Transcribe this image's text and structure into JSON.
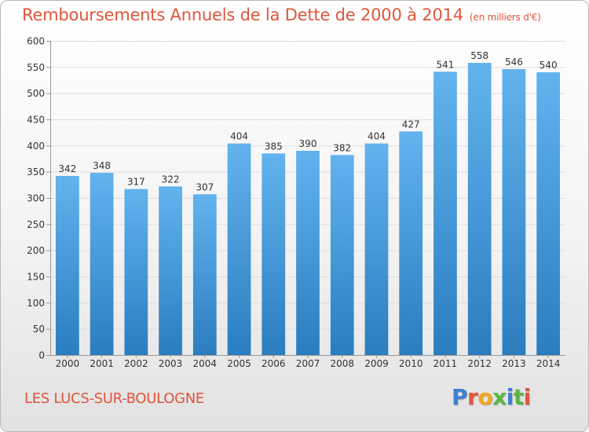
{
  "title": "Remboursements Annuels de la Dette de 2000 à 2014",
  "unit_note": "(en milliers d'€)",
  "location": "LES LUCS-SUR-BOULOGNE",
  "logo": {
    "text": "Proxiti",
    "letter_colors": [
      "#3d7fd1",
      "#e0553b",
      "#f0a81c",
      "#59b543",
      "#3d7fd1",
      "#59b543",
      "#e0553b"
    ]
  },
  "colors": {
    "title": "#e0553b",
    "bar_top": "#62b3ee",
    "bar_bottom": "#2a7dbf",
    "grid": "#dddddd",
    "axis_text": "#333333"
  },
  "chart_data": {
    "type": "bar",
    "categories": [
      "2000",
      "2001",
      "2002",
      "2003",
      "2004",
      "2005",
      "2006",
      "2007",
      "2008",
      "2009",
      "2010",
      "2011",
      "2012",
      "2013",
      "2014"
    ],
    "values": [
      342,
      348,
      317,
      322,
      307,
      404,
      385,
      390,
      382,
      404,
      427,
      541,
      558,
      546,
      540
    ],
    "ylim": [
      0,
      600
    ],
    "yticks": [
      0,
      50,
      100,
      150,
      200,
      250,
      300,
      350,
      400,
      450,
      500,
      550,
      600
    ],
    "grid": true,
    "data_labels": true
  }
}
